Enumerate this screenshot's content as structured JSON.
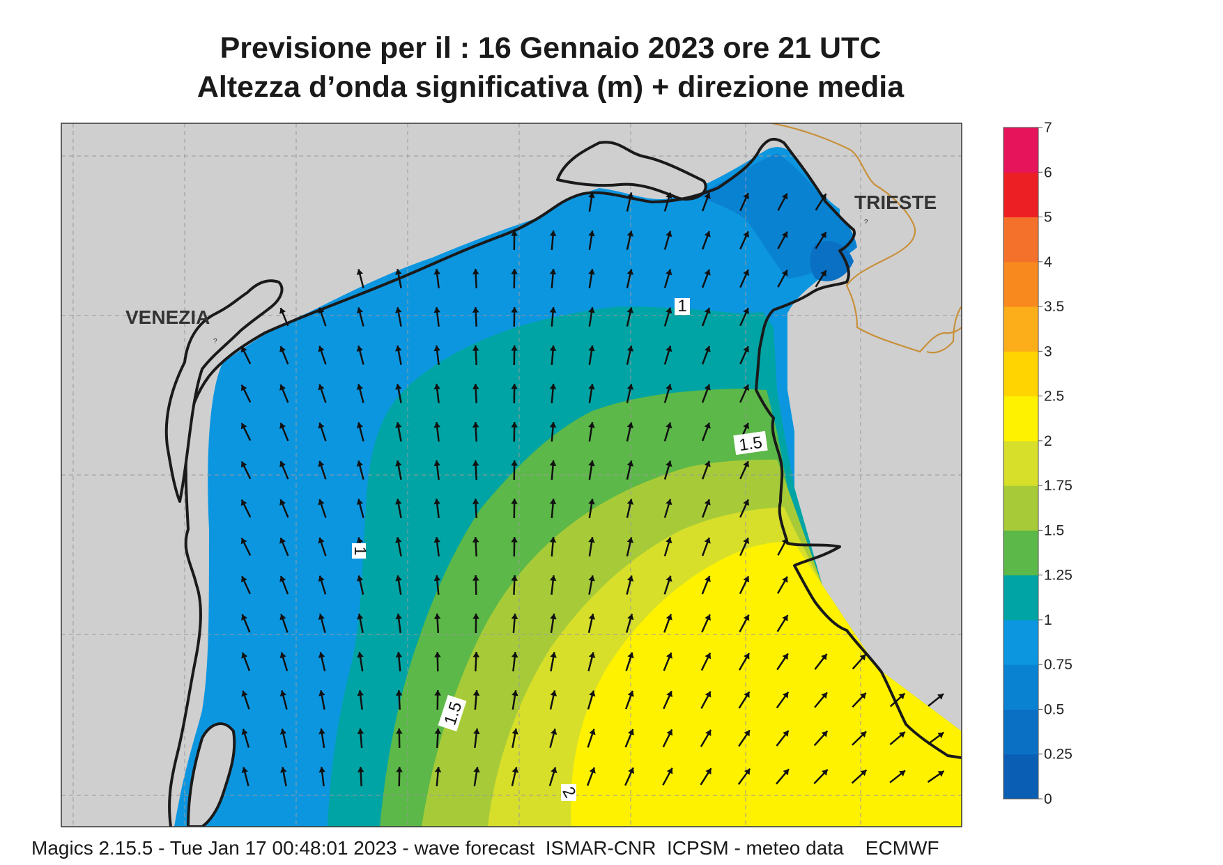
{
  "title": {
    "line1": "Previsione per il  :  16  Gennaio  2023   ore 21 UTC",
    "line2": "Altezza d’onda significativa (m) + direzione media"
  },
  "map": {
    "places": [
      {
        "id": "venezia",
        "name": "VENEZIA"
      },
      {
        "id": "trieste",
        "name": "TRIESTE"
      }
    ],
    "contour_labels": [
      "1",
      "1",
      "1.5",
      "1.5",
      "2"
    ],
    "colors": {
      "land": "#cfcfcf",
      "border": "#c8903a",
      "coast": "#1a1a1a",
      "grid": "#9a9a9a"
    }
  },
  "legend": {
    "ticks": [
      "0",
      "0.25",
      "0.5",
      "0.75",
      "1",
      "1.25",
      "1.5",
      "1.75",
      "2",
      "2.5",
      "3",
      "3.5",
      "4",
      "5",
      "6",
      "7"
    ],
    "colors": [
      "#0a5fb4",
      "#0a70c4",
      "#0a82d2",
      "#0d96e0",
      "#00a4a4",
      "#5cb848",
      "#a7cb38",
      "#d7df2a",
      "#fff200",
      "#ffd400",
      "#fcae1a",
      "#f7891f",
      "#f4712b",
      "#ec2024",
      "#e6145a"
    ]
  },
  "footer": "Magics 2.15.5 - Tue Jan 17 00:48:01 2023 - wave forecast  ISMAR-CNR  ICPSM - meteo data    ECMWF"
}
